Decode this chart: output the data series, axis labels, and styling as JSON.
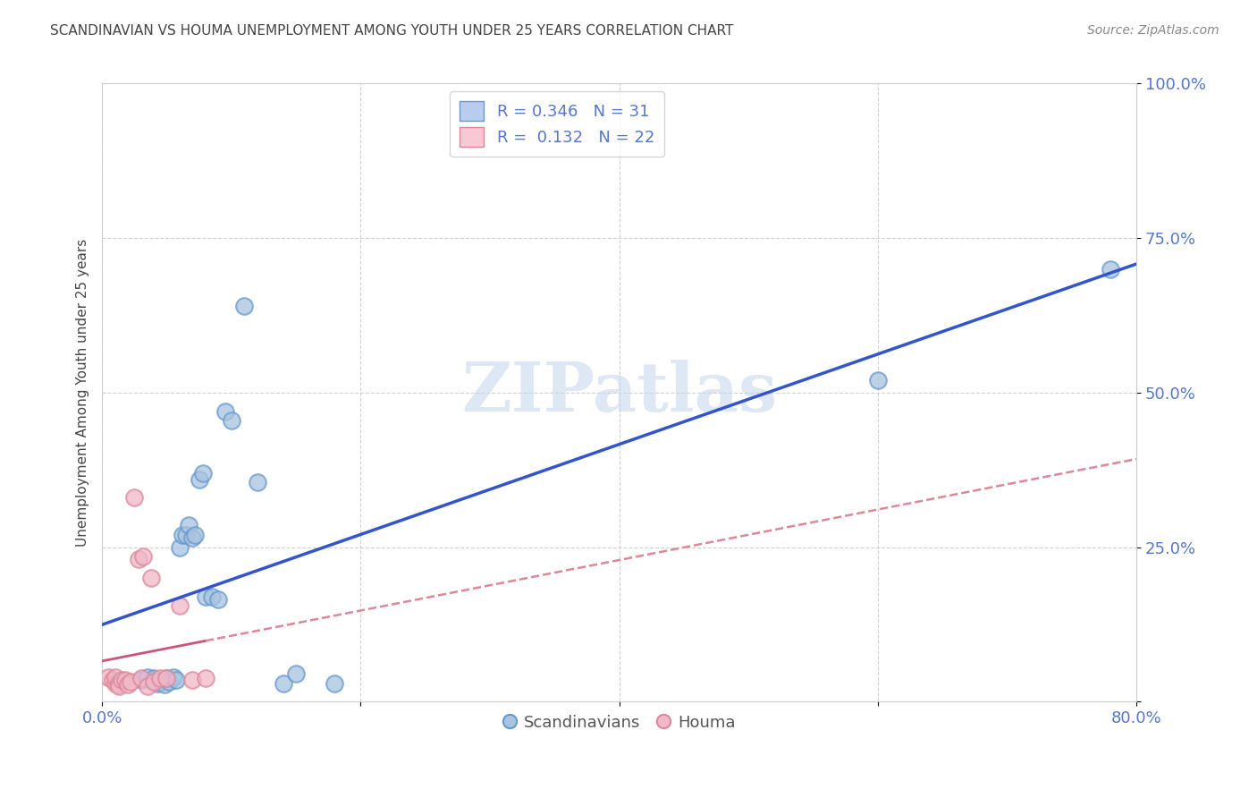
{
  "title": "SCANDINAVIAN VS HOUMA UNEMPLOYMENT AMONG YOUTH UNDER 25 YEARS CORRELATION CHART",
  "source": "Source: ZipAtlas.com",
  "ylabel": "Unemployment Among Youth under 25 years",
  "xlim": [
    0.0,
    0.8
  ],
  "ylim": [
    0.0,
    1.0
  ],
  "xticks": [
    0.0,
    0.2,
    0.4,
    0.6,
    0.8
  ],
  "xtick_labels": [
    "0.0%",
    "",
    "",
    "",
    "80.0%"
  ],
  "yticks": [
    0.0,
    0.25,
    0.5,
    0.75,
    1.0
  ],
  "ytick_labels": [
    "",
    "25.0%",
    "50.0%",
    "75.0%",
    "100.0%"
  ],
  "scandinavian_x": [
    0.03,
    0.035,
    0.04,
    0.04,
    0.043,
    0.045,
    0.048,
    0.05,
    0.052,
    0.055,
    0.057,
    0.06,
    0.062,
    0.065,
    0.067,
    0.07,
    0.072,
    0.075,
    0.078,
    0.08,
    0.085,
    0.09,
    0.095,
    0.1,
    0.11,
    0.12,
    0.14,
    0.15,
    0.18,
    0.6,
    0.78
  ],
  "scandinavian_y": [
    0.035,
    0.04,
    0.035,
    0.038,
    0.03,
    0.032,
    0.028,
    0.038,
    0.032,
    0.04,
    0.035,
    0.25,
    0.27,
    0.27,
    0.285,
    0.265,
    0.27,
    0.36,
    0.37,
    0.17,
    0.17,
    0.165,
    0.47,
    0.455,
    0.64,
    0.355,
    0.03,
    0.045,
    0.03,
    0.52,
    0.7
  ],
  "houma_x": [
    0.005,
    0.008,
    0.01,
    0.01,
    0.012,
    0.013,
    0.015,
    0.018,
    0.02,
    0.022,
    0.025,
    0.028,
    0.03,
    0.032,
    0.035,
    0.038,
    0.04,
    0.045,
    0.05,
    0.06,
    0.07,
    0.08
  ],
  "houma_y": [
    0.04,
    0.035,
    0.03,
    0.04,
    0.028,
    0.025,
    0.035,
    0.035,
    0.028,
    0.032,
    0.33,
    0.23,
    0.038,
    0.235,
    0.025,
    0.2,
    0.032,
    0.038,
    0.038,
    0.155,
    0.035,
    0.038
  ],
  "R_scandinavian": 0.346,
  "N_scandinavian": 31,
  "R_houma": 0.132,
  "N_houma": 22,
  "blue_scatter_color": "#a8c4e0",
  "blue_scatter_edge": "#6699cc",
  "pink_scatter_color": "#f0b8c8",
  "pink_scatter_edge": "#dd8899",
  "blue_line_color": "#3355cc",
  "pink_line_color": "#cc5577",
  "pink_dashed_color": "#dd8899",
  "legend_blue_fill": "#b8ccee",
  "legend_pink_fill": "#f8c8d4",
  "watermark_text": "ZIPatlas",
  "watermark_color": "#c8d8ee",
  "background_color": "#ffffff",
  "grid_color": "#cccccc",
  "tick_color": "#5577cc",
  "title_color": "#444444",
  "source_color": "#888888",
  "ylabel_color": "#444444"
}
